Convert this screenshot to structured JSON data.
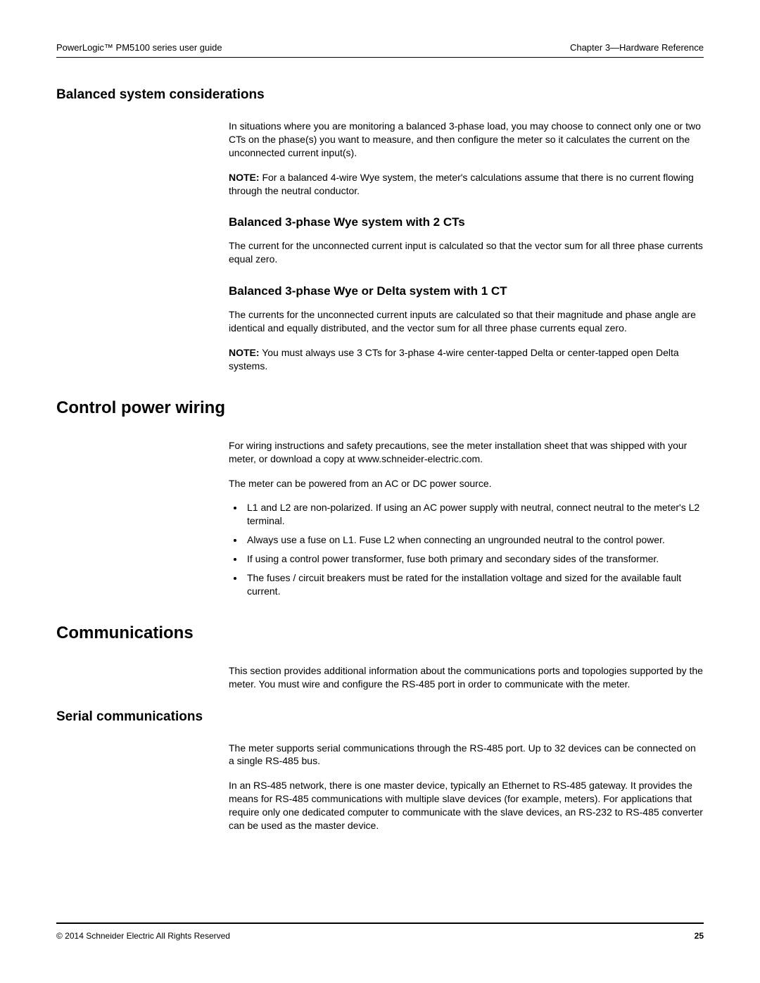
{
  "header": {
    "left": "PowerLogic™ PM5100 series user guide",
    "right": "Chapter 3—Hardware Reference"
  },
  "sections": {
    "balanced": {
      "title": "Balanced system considerations",
      "intro": "In situations where you are monitoring a balanced 3-phase load, you may choose to connect only one or two CTs on the phase(s) you want to measure, and then configure the meter so it calculates the current on the unconnected current input(s).",
      "note1_label": "NOTE:",
      "note1": " For a balanced 4-wire Wye system, the meter's calculations assume that there is no current flowing through the neutral conductor.",
      "sub1_title": "Balanced 3-phase Wye system with 2 CTs",
      "sub1_body": "The current for the unconnected current input is calculated so that the vector sum for all three phase currents equal zero.",
      "sub2_title": "Balanced 3-phase Wye or Delta system with 1 CT",
      "sub2_body": "The currents for the unconnected current inputs are calculated so that their magnitude and phase angle are identical and equally distributed, and the vector sum for all three phase currents equal zero.",
      "note2_label": "NOTE:",
      "note2": " You must always use 3 CTs for 3-phase 4-wire center-tapped Delta or center-tapped open Delta systems."
    },
    "control": {
      "title": "Control power wiring",
      "p1": "For wiring instructions and safety precautions, see the meter installation sheet that was shipped with your meter, or download a copy at www.schneider-electric.com.",
      "p2": "The meter can be powered from an AC or DC power source.",
      "bullets": [
        "L1 and L2 are non-polarized. If using an AC power supply with neutral, connect neutral to the meter's L2 terminal.",
        "Always use a fuse on L1. Fuse L2 when connecting an ungrounded neutral to the control power.",
        "If using a control power transformer, fuse both primary and secondary sides of the transformer.",
        "The fuses / circuit breakers must be rated for the installation voltage and sized for the available fault current."
      ]
    },
    "comms": {
      "title": "Communications",
      "p1": "This section provides additional information about the communications ports and topologies supported by the meter. You must wire and configure the RS-485 port in order to communicate with the meter.",
      "serial_title": "Serial communications",
      "serial_p1": "The meter supports serial communications through the RS-485 port. Up to 32 devices can be connected on a single RS-485 bus.",
      "serial_p2": "In an RS-485 network, there is one master device, typically an Ethernet to RS-485 gateway. It provides the means for RS-485 communications with multiple slave devices (for example, meters). For applications that require only one dedicated computer to communicate with the slave devices, an RS-232 to RS-485 converter can be used as the master device."
    }
  },
  "footer": {
    "copyright": "© 2014 Schneider Electric All Rights Reserved",
    "page": "25"
  }
}
